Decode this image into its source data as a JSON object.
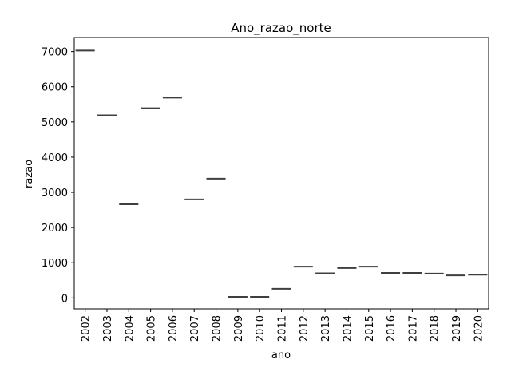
{
  "chart_data": {
    "type": "box",
    "title": "Ano_razao_norte",
    "xlabel": "ano",
    "ylabel": "razao",
    "categories": [
      "2002",
      "2003",
      "2004",
      "2005",
      "2006",
      "2007",
      "2008",
      "2009",
      "2010",
      "2011",
      "2012",
      "2013",
      "2014",
      "2015",
      "2016",
      "2017",
      "2018",
      "2019",
      "2020"
    ],
    "values": [
      7030,
      5190,
      2660,
      5390,
      5690,
      2800,
      3390,
      30,
      30,
      260,
      890,
      700,
      850,
      890,
      710,
      710,
      690,
      640,
      660
    ],
    "ylim": [
      -310,
      7400
    ],
    "yticks": [
      0,
      1000,
      2000,
      3000,
      4000,
      5000,
      6000,
      7000
    ],
    "ytick_labels": [
      "0",
      "1000",
      "2000",
      "3000",
      "4000",
      "5000",
      "6000",
      "7000"
    ],
    "grid": false,
    "colors": {
      "median_line": "#3f3f3f",
      "axes": "#000000"
    }
  }
}
